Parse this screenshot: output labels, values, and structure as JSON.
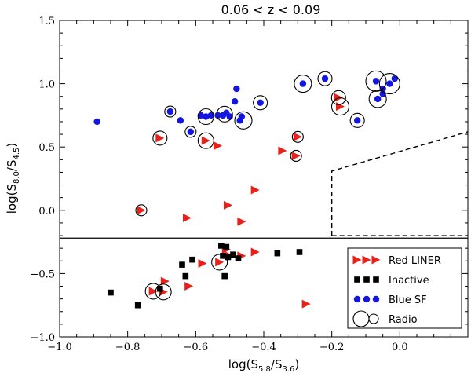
{
  "chart_data": {
    "type": "scatter",
    "title": "0.06 < z < 0.09",
    "xlabel_main": "log(S",
    "xlabel_sub1": "5.8",
    "xlabel_mid": "/S",
    "xlabel_sub2": "3.6",
    "xlabel_end": ")",
    "ylabel_main": "log(S",
    "ylabel_sub1": "8.0",
    "ylabel_mid": "/S",
    "ylabel_sub2": "4.5",
    "ylabel_end": ")",
    "xlim": [
      -1.0,
      0.2
    ],
    "ylim": [
      -1.0,
      1.5
    ],
    "xticks": [
      -1.0,
      -0.8,
      -0.6,
      -0.4,
      -0.2,
      0.0
    ],
    "xtick_labels": [
      "−1.0",
      "−0.8",
      "−0.6",
      "−0.4",
      "−0.2",
      "0.0"
    ],
    "yticks": [
      1.5,
      1.0,
      0.5,
      0.0,
      -0.5,
      -1.0
    ],
    "ytick_labels": [
      "1.5",
      "1.0",
      "0.5",
      "0.0",
      "−0.5",
      "−1.0"
    ],
    "panel_divider_y": -0.22,
    "dashed_boundary": [
      [
        -0.2,
        -0.2
      ],
      [
        -0.2,
        0.31
      ],
      [
        0.2,
        0.62
      ]
    ],
    "dashed_bottom": [
      [
        -0.2,
        -0.2
      ],
      [
        0.2,
        -0.2
      ]
    ],
    "colors": {
      "red": "#e8221b",
      "black": "#000000",
      "blue": "#1515e0"
    },
    "legend": [
      {
        "label": "Red LINER",
        "marker": "triangle",
        "color": "#e8221b"
      },
      {
        "label": "Inactive",
        "marker": "square",
        "color": "#000000"
      },
      {
        "label": "Blue SF",
        "marker": "circle",
        "color": "#1515e0"
      },
      {
        "label": "Radio",
        "marker": "open-circle",
        "color": "#000000"
      }
    ],
    "series": [
      {
        "name": "Red LINER",
        "marker": "triangle",
        "points": [
          [
            -0.705,
            0.57
          ],
          [
            -0.57,
            0.55
          ],
          [
            -0.535,
            0.51
          ],
          [
            -0.345,
            0.47
          ],
          [
            -0.305,
            0.43
          ],
          [
            -0.3,
            0.58
          ],
          [
            -0.18,
            0.89
          ],
          [
            -0.175,
            0.82
          ],
          [
            -0.76,
            0.0
          ],
          [
            -0.425,
            0.16
          ],
          [
            -0.625,
            -0.06
          ],
          [
            -0.505,
            0.04
          ],
          [
            -0.465,
            -0.09
          ],
          [
            -0.58,
            -0.42
          ],
          [
            -0.53,
            -0.41
          ],
          [
            -0.5,
            -0.36
          ],
          [
            -0.465,
            -0.36
          ],
          [
            -0.425,
            -0.33
          ],
          [
            -0.51,
            -0.31
          ],
          [
            -0.69,
            -0.56
          ],
          [
            -0.62,
            -0.6
          ],
          [
            -0.725,
            -0.64
          ],
          [
            -0.695,
            -0.645
          ],
          [
            -0.275,
            -0.74
          ]
        ]
      },
      {
        "name": "Inactive",
        "marker": "square",
        "points": [
          [
            -0.85,
            -0.65
          ],
          [
            -0.77,
            -0.75
          ],
          [
            -0.705,
            -0.62
          ],
          [
            -0.64,
            -0.43
          ],
          [
            -0.63,
            -0.52
          ],
          [
            -0.61,
            -0.39
          ],
          [
            -0.525,
            -0.28
          ],
          [
            -0.51,
            -0.29
          ],
          [
            -0.52,
            -0.36
          ],
          [
            -0.505,
            -0.37
          ],
          [
            -0.49,
            -0.35
          ],
          [
            -0.475,
            -0.38
          ],
          [
            -0.515,
            -0.52
          ],
          [
            -0.36,
            -0.34
          ],
          [
            -0.295,
            -0.33
          ]
        ]
      },
      {
        "name": "Blue SF",
        "marker": "circle",
        "points": [
          [
            -0.89,
            0.7
          ],
          [
            -0.675,
            0.78
          ],
          [
            -0.645,
            0.71
          ],
          [
            -0.615,
            0.62
          ],
          [
            -0.585,
            0.75
          ],
          [
            -0.57,
            0.74
          ],
          [
            -0.555,
            0.75
          ],
          [
            -0.535,
            0.75
          ],
          [
            -0.52,
            0.75
          ],
          [
            -0.51,
            0.77
          ],
          [
            -0.5,
            0.74
          ],
          [
            -0.485,
            0.86
          ],
          [
            -0.48,
            0.96
          ],
          [
            -0.465,
            0.74
          ],
          [
            -0.47,
            0.71
          ],
          [
            -0.41,
            0.85
          ],
          [
            -0.285,
            1.0
          ],
          [
            -0.22,
            1.04
          ],
          [
            -0.125,
            0.71
          ],
          [
            -0.07,
            1.02
          ],
          [
            -0.065,
            0.88
          ],
          [
            -0.05,
            0.96
          ],
          [
            -0.05,
            0.92
          ],
          [
            -0.03,
            1.0
          ],
          [
            -0.015,
            1.04
          ]
        ]
      },
      {
        "name": "Radio",
        "marker": "open-circle",
        "points": [
          [
            -0.705,
            0.57,
            9
          ],
          [
            -0.675,
            0.78,
            7
          ],
          [
            -0.615,
            0.62,
            7
          ],
          [
            -0.57,
            0.74,
            10
          ],
          [
            -0.57,
            0.55,
            10
          ],
          [
            -0.515,
            0.76,
            10
          ],
          [
            -0.46,
            0.71,
            11
          ],
          [
            -0.41,
            0.85,
            9
          ],
          [
            -0.305,
            0.43,
            7
          ],
          [
            -0.3,
            0.58,
            7
          ],
          [
            -0.285,
            1.0,
            11
          ],
          [
            -0.22,
            1.04,
            9
          ],
          [
            -0.18,
            0.89,
            9
          ],
          [
            -0.175,
            0.82,
            11
          ],
          [
            -0.125,
            0.71,
            9
          ],
          [
            -0.07,
            1.02,
            13
          ],
          [
            -0.065,
            0.88,
            11
          ],
          [
            -0.03,
            1.0,
            13
          ],
          [
            -0.76,
            0.0,
            7
          ],
          [
            -0.53,
            -0.41,
            10
          ],
          [
            -0.725,
            -0.64,
            10
          ],
          [
            -0.695,
            -0.645,
            10
          ]
        ]
      }
    ]
  }
}
